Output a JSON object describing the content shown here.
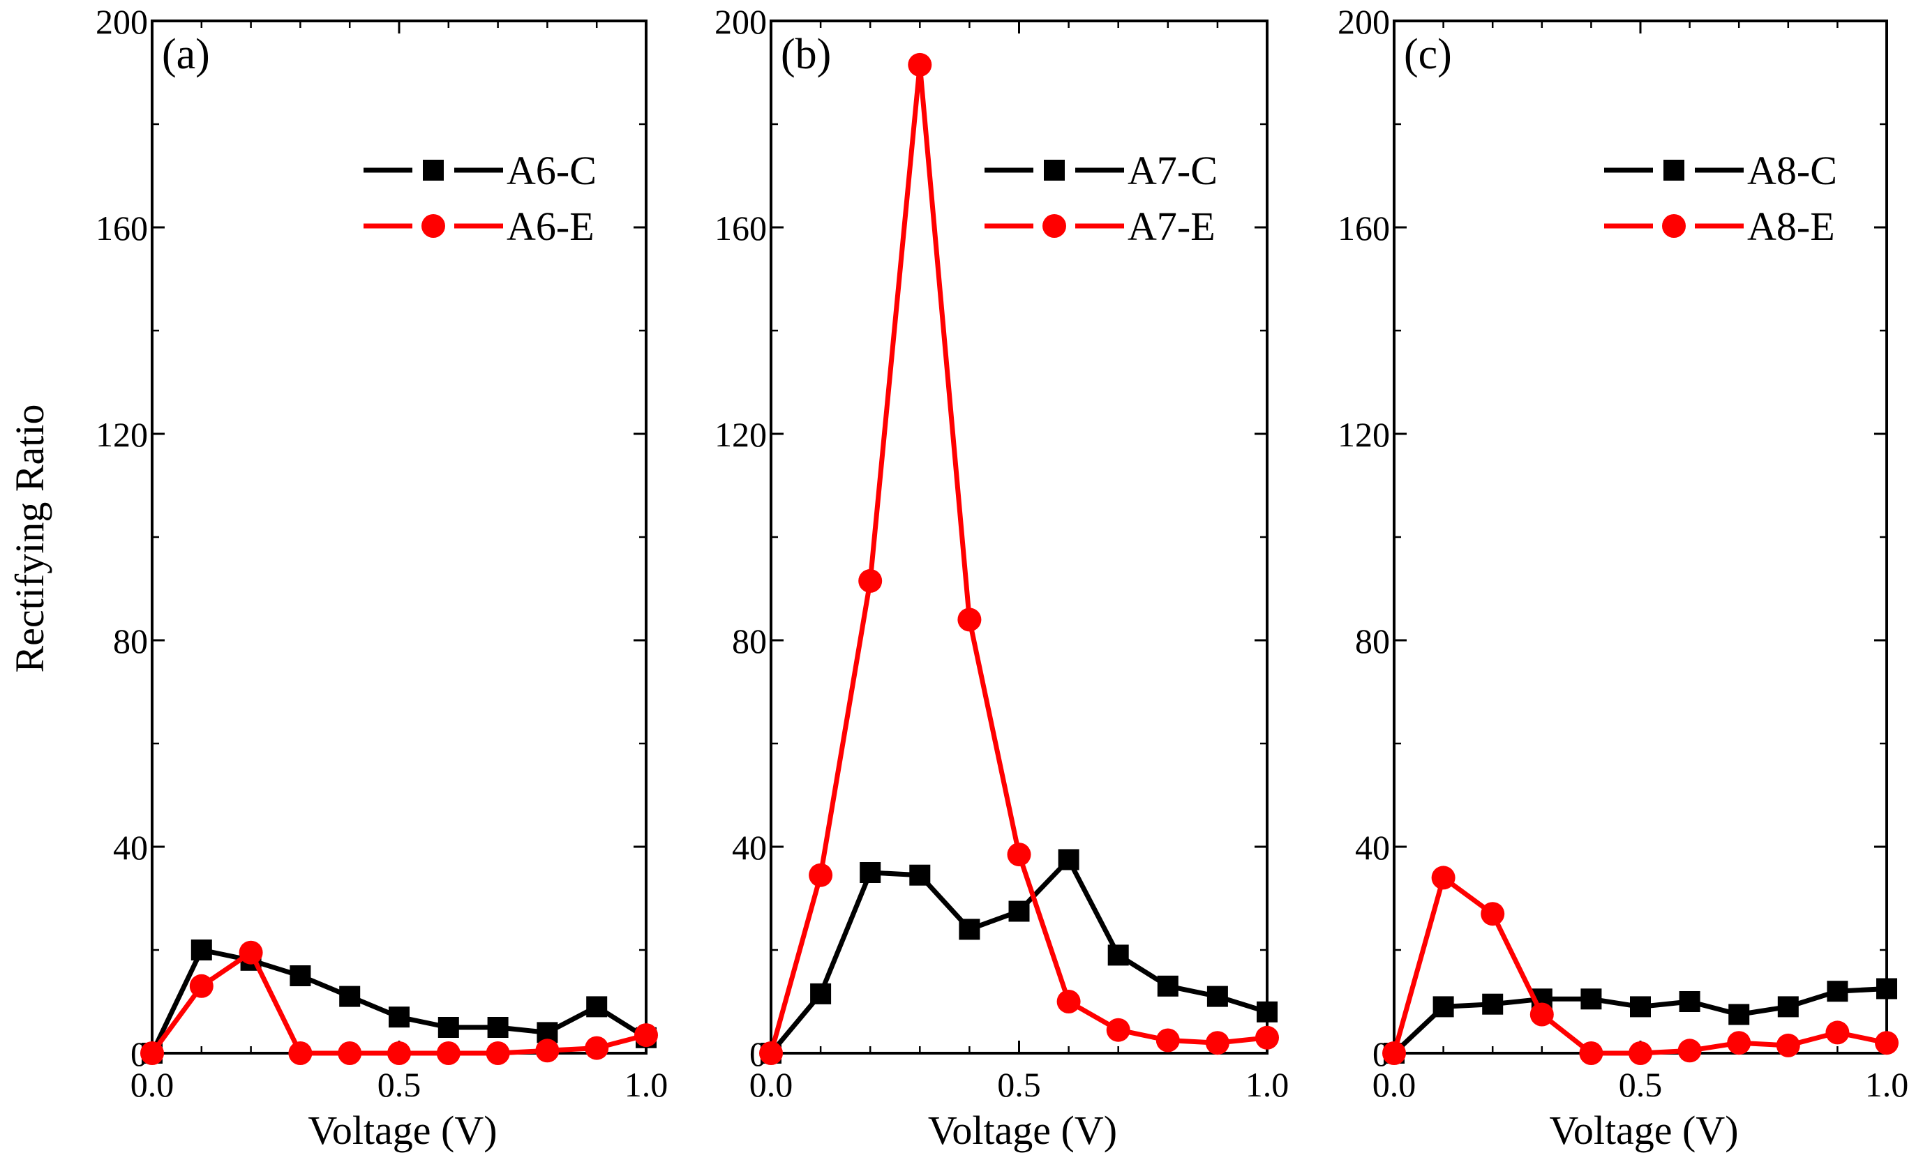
{
  "figure": {
    "ylabel": "Rectifying Ratio"
  },
  "chart_data": [
    {
      "type": "line",
      "panel_label": "(a)",
      "xlabel": "Voltage (V)",
      "ylabel": "Rectifying Ratio",
      "xlim": [
        0,
        1.0
      ],
      "ylim": [
        0,
        200
      ],
      "xticks": [
        "0.0",
        "0.5",
        "1.0"
      ],
      "yticks": [
        "0",
        "40",
        "80",
        "120",
        "160",
        "200"
      ],
      "legend_position": "top-right",
      "series": [
        {
          "name": "A6-C",
          "color": "#000000",
          "marker": "square",
          "dash": "dashed",
          "x": [
            0.0,
            0.1,
            0.2,
            0.3,
            0.4,
            0.5,
            0.6,
            0.7,
            0.8,
            0.9,
            1.0
          ],
          "values": [
            0,
            20,
            18,
            15,
            11,
            7,
            5,
            5,
            4,
            9,
            3
          ]
        },
        {
          "name": "A6-E",
          "color": "#ff0000",
          "marker": "circle",
          "dash": "dashed",
          "x": [
            0.0,
            0.1,
            0.2,
            0.3,
            0.4,
            0.5,
            0.6,
            0.7,
            0.8,
            0.9,
            1.0
          ],
          "values": [
            0,
            13,
            19.5,
            0,
            0,
            0,
            0,
            0,
            0.5,
            1,
            3.5
          ]
        }
      ]
    },
    {
      "type": "line",
      "panel_label": "(b)",
      "xlabel": "Voltage (V)",
      "ylabel": "",
      "xlim": [
        0,
        1.0
      ],
      "ylim": [
        0,
        200
      ],
      "xticks": [
        "0.0",
        "0.5",
        "1.0"
      ],
      "yticks": [
        "0",
        "40",
        "80",
        "120",
        "160",
        "200"
      ],
      "legend_position": "top-right",
      "series": [
        {
          "name": "A7-C",
          "color": "#000000",
          "marker": "square",
          "dash": "dashed",
          "x": [
            0.0,
            0.1,
            0.2,
            0.3,
            0.4,
            0.5,
            0.6,
            0.7,
            0.8,
            0.9,
            1.0
          ],
          "values": [
            0,
            11.5,
            35,
            34.5,
            24,
            27.5,
            37.5,
            19,
            13,
            11,
            8
          ]
        },
        {
          "name": "A7-E",
          "color": "#ff0000",
          "marker": "circle",
          "dash": "dashed",
          "x": [
            0.0,
            0.1,
            0.2,
            0.3,
            0.4,
            0.5,
            0.6,
            0.7,
            0.8,
            0.9,
            1.0
          ],
          "values": [
            0,
            34.5,
            91.5,
            191.5,
            84,
            38.5,
            10,
            4.5,
            2.5,
            2,
            3
          ]
        }
      ]
    },
    {
      "type": "line",
      "panel_label": "(c)",
      "xlabel": "Voltage (V)",
      "ylabel": "",
      "xlim": [
        0,
        1.0
      ],
      "ylim": [
        0,
        200
      ],
      "xticks": [
        "0.0",
        "0.5",
        "1.0"
      ],
      "yticks": [
        "0",
        "40",
        "80",
        "120",
        "160",
        "200"
      ],
      "legend_position": "top-right",
      "series": [
        {
          "name": "A8-C",
          "color": "#000000",
          "marker": "square",
          "dash": "dashed",
          "x": [
            0.0,
            0.1,
            0.2,
            0.3,
            0.4,
            0.5,
            0.6,
            0.7,
            0.8,
            0.9,
            1.0
          ],
          "values": [
            0,
            9,
            9.5,
            10.5,
            10.5,
            9,
            10,
            7.5,
            9,
            12,
            12.5
          ]
        },
        {
          "name": "A8-E",
          "color": "#ff0000",
          "marker": "circle",
          "dash": "dashed",
          "x": [
            0.0,
            0.1,
            0.2,
            0.3,
            0.4,
            0.5,
            0.6,
            0.7,
            0.8,
            0.9,
            1.0
          ],
          "values": [
            0,
            34,
            27,
            7.5,
            0,
            0,
            0.5,
            2,
            1.5,
            4,
            2
          ]
        }
      ]
    }
  ]
}
